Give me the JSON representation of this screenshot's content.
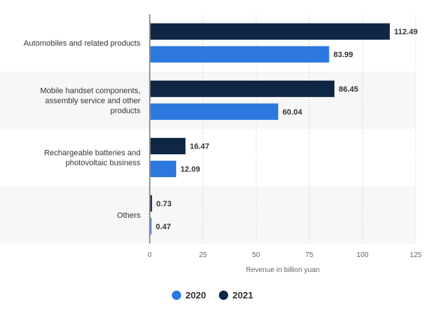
{
  "chart_data": {
    "type": "bar",
    "orientation": "horizontal",
    "categories": [
      [
        "Automobiles and related products"
      ],
      [
        "Mobile handset components,",
        "assembly service and other",
        "products"
      ],
      [
        "Rechargeable batteries and",
        "photovoltaic business"
      ],
      [
        "Others"
      ]
    ],
    "series": [
      {
        "name": "2021",
        "color": "#0f2744",
        "values": [
          112.49,
          86.45,
          16.47,
          0.73
        ],
        "labels": [
          "112.49",
          "86.45",
          "16.47",
          "0.73"
        ]
      },
      {
        "name": "2020",
        "color": "#2d78df",
        "values": [
          83.99,
          60.04,
          12.09,
          0.47
        ],
        "labels": [
          "83.99",
          "60.04",
          "12.09",
          "0.47"
        ]
      }
    ],
    "xlabel": "Revenue in billion yuan",
    "xlim": [
      0,
      125
    ],
    "xticks": [
      0,
      25,
      50,
      75,
      100,
      125
    ],
    "grid": true,
    "legend_position": "bottom",
    "legend": [
      {
        "label": "2020",
        "color": "#2d78df"
      },
      {
        "label": "2021",
        "color": "#0f2744"
      }
    ]
  }
}
